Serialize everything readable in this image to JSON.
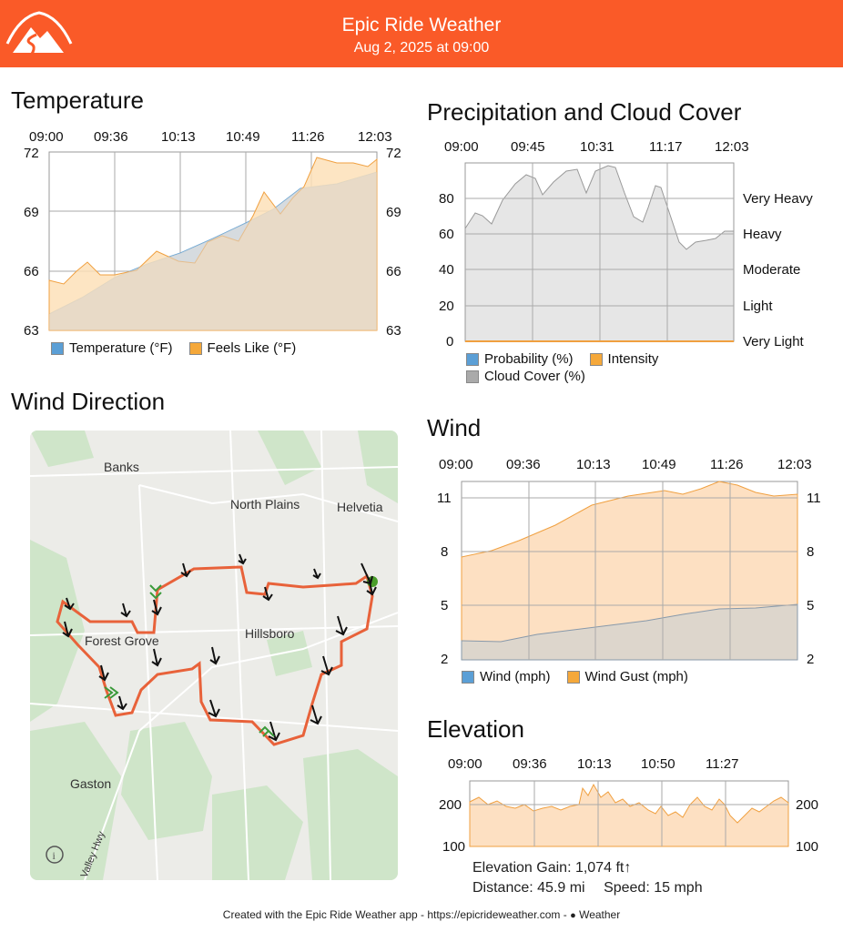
{
  "header": {
    "title": "Epic Ride Weather",
    "subtitle": "Aug 2, 2025 at 09:00"
  },
  "temperature": {
    "title": "Temperature",
    "times": [
      "09:00",
      "09:36",
      "10:13",
      "10:49",
      "11:26",
      "12:03"
    ],
    "yticks": [
      "72",
      "69",
      "66",
      "63"
    ],
    "legend": {
      "temp": "Temperature (°F)",
      "feels": "Feels Like (°F)"
    }
  },
  "precip": {
    "title": "Precipitation and Cloud Cover",
    "times": [
      "09:00",
      "09:45",
      "10:31",
      "11:17",
      "12:03"
    ],
    "yticks": [
      "80",
      "60",
      "40",
      "20",
      "0"
    ],
    "levels": [
      "Very Heavy",
      "Heavy",
      "Moderate",
      "Light",
      "Very Light"
    ],
    "legend": {
      "prob": "Probability (%)",
      "intensity": "Intensity",
      "cloud": "Cloud Cover (%)"
    }
  },
  "winddir": {
    "title": "Wind Direction",
    "places": {
      "banks": "Banks",
      "north_plains": "North Plains",
      "helvetia": "Helvetia",
      "forest_grove": "Forest Grove",
      "hillsboro": "Hillsboro",
      "gaston": "Gaston",
      "valley_hwy": "Valley Hwy"
    }
  },
  "wind": {
    "title": "Wind",
    "times": [
      "09:00",
      "09:36",
      "10:13",
      "10:49",
      "11:26",
      "12:03"
    ],
    "yticks": [
      "11",
      "8",
      "5",
      "2"
    ],
    "legend": {
      "wind": "Wind (mph)",
      "gust": "Wind Gust (mph)"
    }
  },
  "elevation": {
    "title": "Elevation",
    "times": [
      "09:00",
      "09:36",
      "10:13",
      "10:50",
      "11:27"
    ],
    "yticks": [
      "200",
      "100"
    ],
    "gain": "Elevation Gain: 1,074 ft↑",
    "distance": "Distance: 45.9 mi",
    "speed": "Speed: 15 mph"
  },
  "colors": {
    "accent": "#fa5a28",
    "temp": "#cfe3f5",
    "feels": "#fde0b8",
    "cloud": "#e6e6e6",
    "route": "#e8623a",
    "gust": "#fde0c2",
    "windfill": "#ddd6cc"
  },
  "footer": {
    "text": "Created with the Epic Ride Weather app - https://epicrideweather.com - ",
    "weather": " Weather"
  }
}
